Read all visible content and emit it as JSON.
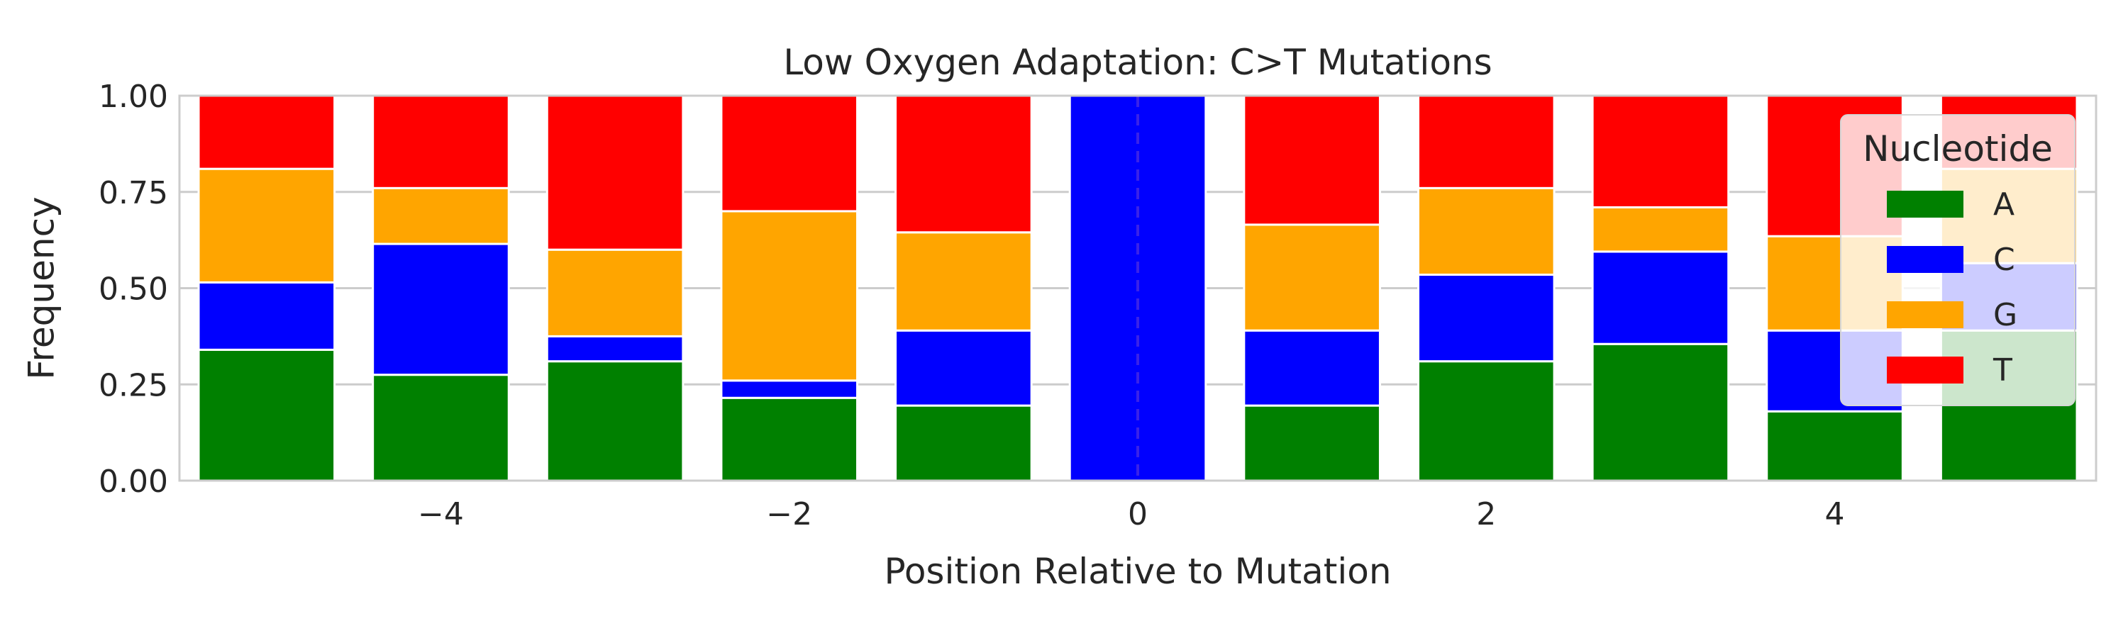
{
  "chart_data": {
    "type": "bar",
    "stacked": true,
    "title": "Low Oxygen Adaptation: C>T Mutations",
    "xlabel": "Position Relative to Mutation",
    "ylabel": "Frequency",
    "x": [
      -5,
      -4,
      -3,
      -2,
      -1,
      0,
      1,
      2,
      3,
      4,
      5
    ],
    "xticks": [
      "−4",
      "−2",
      "0",
      "2",
      "4"
    ],
    "xtick_values": [
      -4,
      -2,
      0,
      2,
      4
    ],
    "yticks": [
      "0.00",
      "0.25",
      "0.50",
      "0.75",
      "1.00"
    ],
    "ytick_values": [
      0,
      0.25,
      0.5,
      0.75,
      1.0
    ],
    "ylim": [
      0,
      1.0
    ],
    "xlim": [
      -5.5,
      5.5
    ],
    "grid": "horizontal",
    "mutation_marker_x": 0,
    "legend": {
      "title": "Nucleotide",
      "placement": "right"
    },
    "series": [
      {
        "name": "A",
        "color": "#008000",
        "values": [
          0.34,
          0.275,
          0.31,
          0.215,
          0.195,
          0.0,
          0.195,
          0.31,
          0.355,
          0.18,
          0.39
        ]
      },
      {
        "name": "C",
        "color": "#0000ff",
        "values": [
          0.175,
          0.34,
          0.065,
          0.045,
          0.195,
          1.0,
          0.195,
          0.225,
          0.24,
          0.21,
          0.175
        ]
      },
      {
        "name": "G",
        "color": "#ffa500",
        "values": [
          0.295,
          0.145,
          0.225,
          0.44,
          0.255,
          0.0,
          0.275,
          0.225,
          0.115,
          0.245,
          0.245
        ]
      },
      {
        "name": "T",
        "color": "#ff0000",
        "values": [
          0.19,
          0.24,
          0.4,
          0.3,
          0.355,
          0.0,
          0.335,
          0.24,
          0.29,
          0.365,
          0.19
        ]
      }
    ]
  }
}
